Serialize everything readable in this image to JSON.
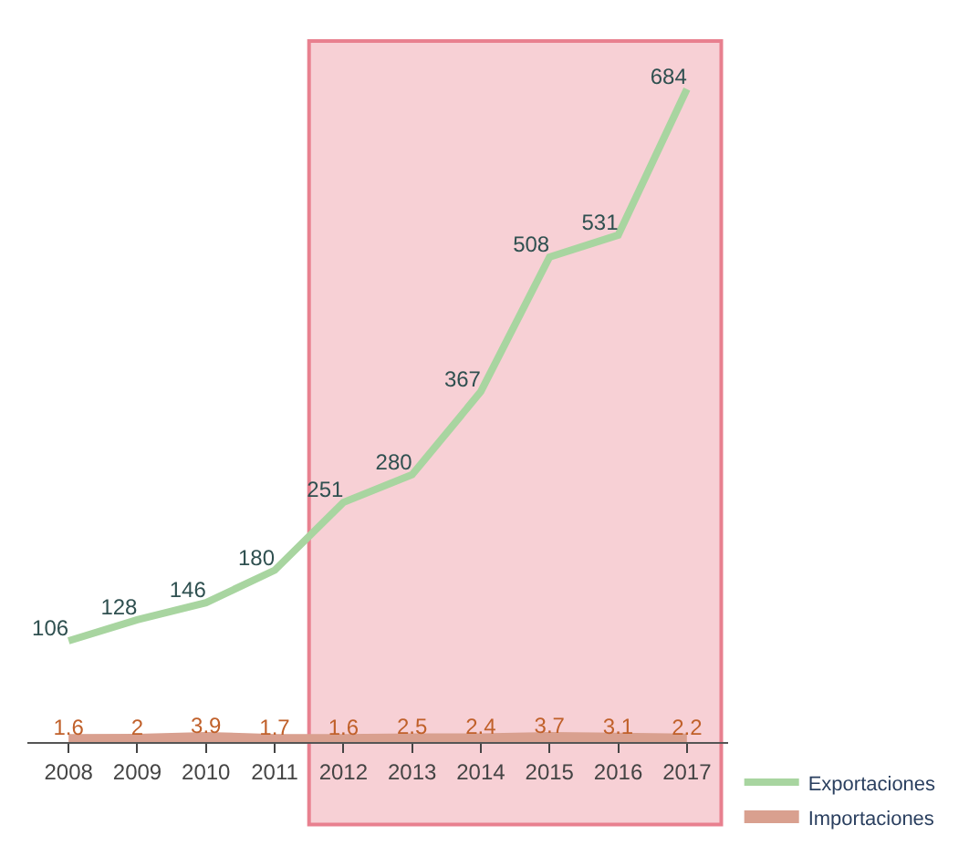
{
  "chart_data": {
    "type": "line",
    "categories": [
      "2008",
      "2009",
      "2010",
      "2011",
      "2012",
      "2013",
      "2014",
      "2015",
      "2016",
      "2017"
    ],
    "series": [
      {
        "name": "Exportaciones",
        "color": "#a8d5a0",
        "values": [
          106,
          128,
          146,
          180,
          251,
          280,
          367,
          508,
          531,
          684
        ]
      },
      {
        "name": "Importaciones",
        "color": "#d9a08f",
        "values": [
          1.6,
          2,
          3.9,
          1.7,
          1.6,
          2.5,
          2.4,
          3.7,
          3.1,
          2.2
        ]
      }
    ],
    "bands": [
      {
        "axis": "x",
        "from": "2012",
        "to": "2017",
        "color": "#f7d0d5"
      }
    ],
    "data_labels": true,
    "legend": "bottom right",
    "marker": "none",
    "line_style": "solid",
    "grid": false,
    "tick_labels": "x"
  }
}
